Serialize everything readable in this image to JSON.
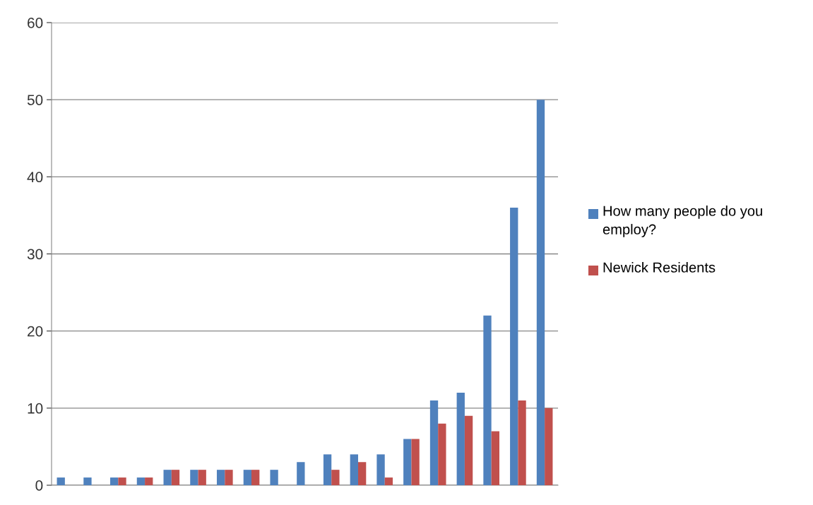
{
  "chart_data": {
    "type": "bar",
    "categories": [
      null,
      null,
      null,
      null,
      null,
      null,
      null,
      null,
      null,
      null,
      null,
      null,
      null,
      null,
      null,
      null,
      null,
      null,
      null
    ],
    "series": [
      {
        "name": "How many people do you employ?",
        "color": "#4f81bd",
        "values": [
          1,
          1,
          1,
          1,
          2,
          2,
          2,
          2,
          2,
          3,
          4,
          4,
          4,
          6,
          11,
          12,
          22,
          36,
          50
        ]
      },
      {
        "name": "Newick Residents",
        "color": "#c0504d",
        "values": [
          0,
          0,
          1,
          1,
          2,
          2,
          2,
          2,
          0,
          0,
          2,
          3,
          1,
          6,
          8,
          9,
          7,
          11,
          10
        ]
      }
    ],
    "ylim": [
      0,
      60
    ],
    "yticks": [
      0,
      10,
      20,
      30,
      40,
      50,
      60
    ],
    "grid": "y",
    "legend": "right"
  }
}
